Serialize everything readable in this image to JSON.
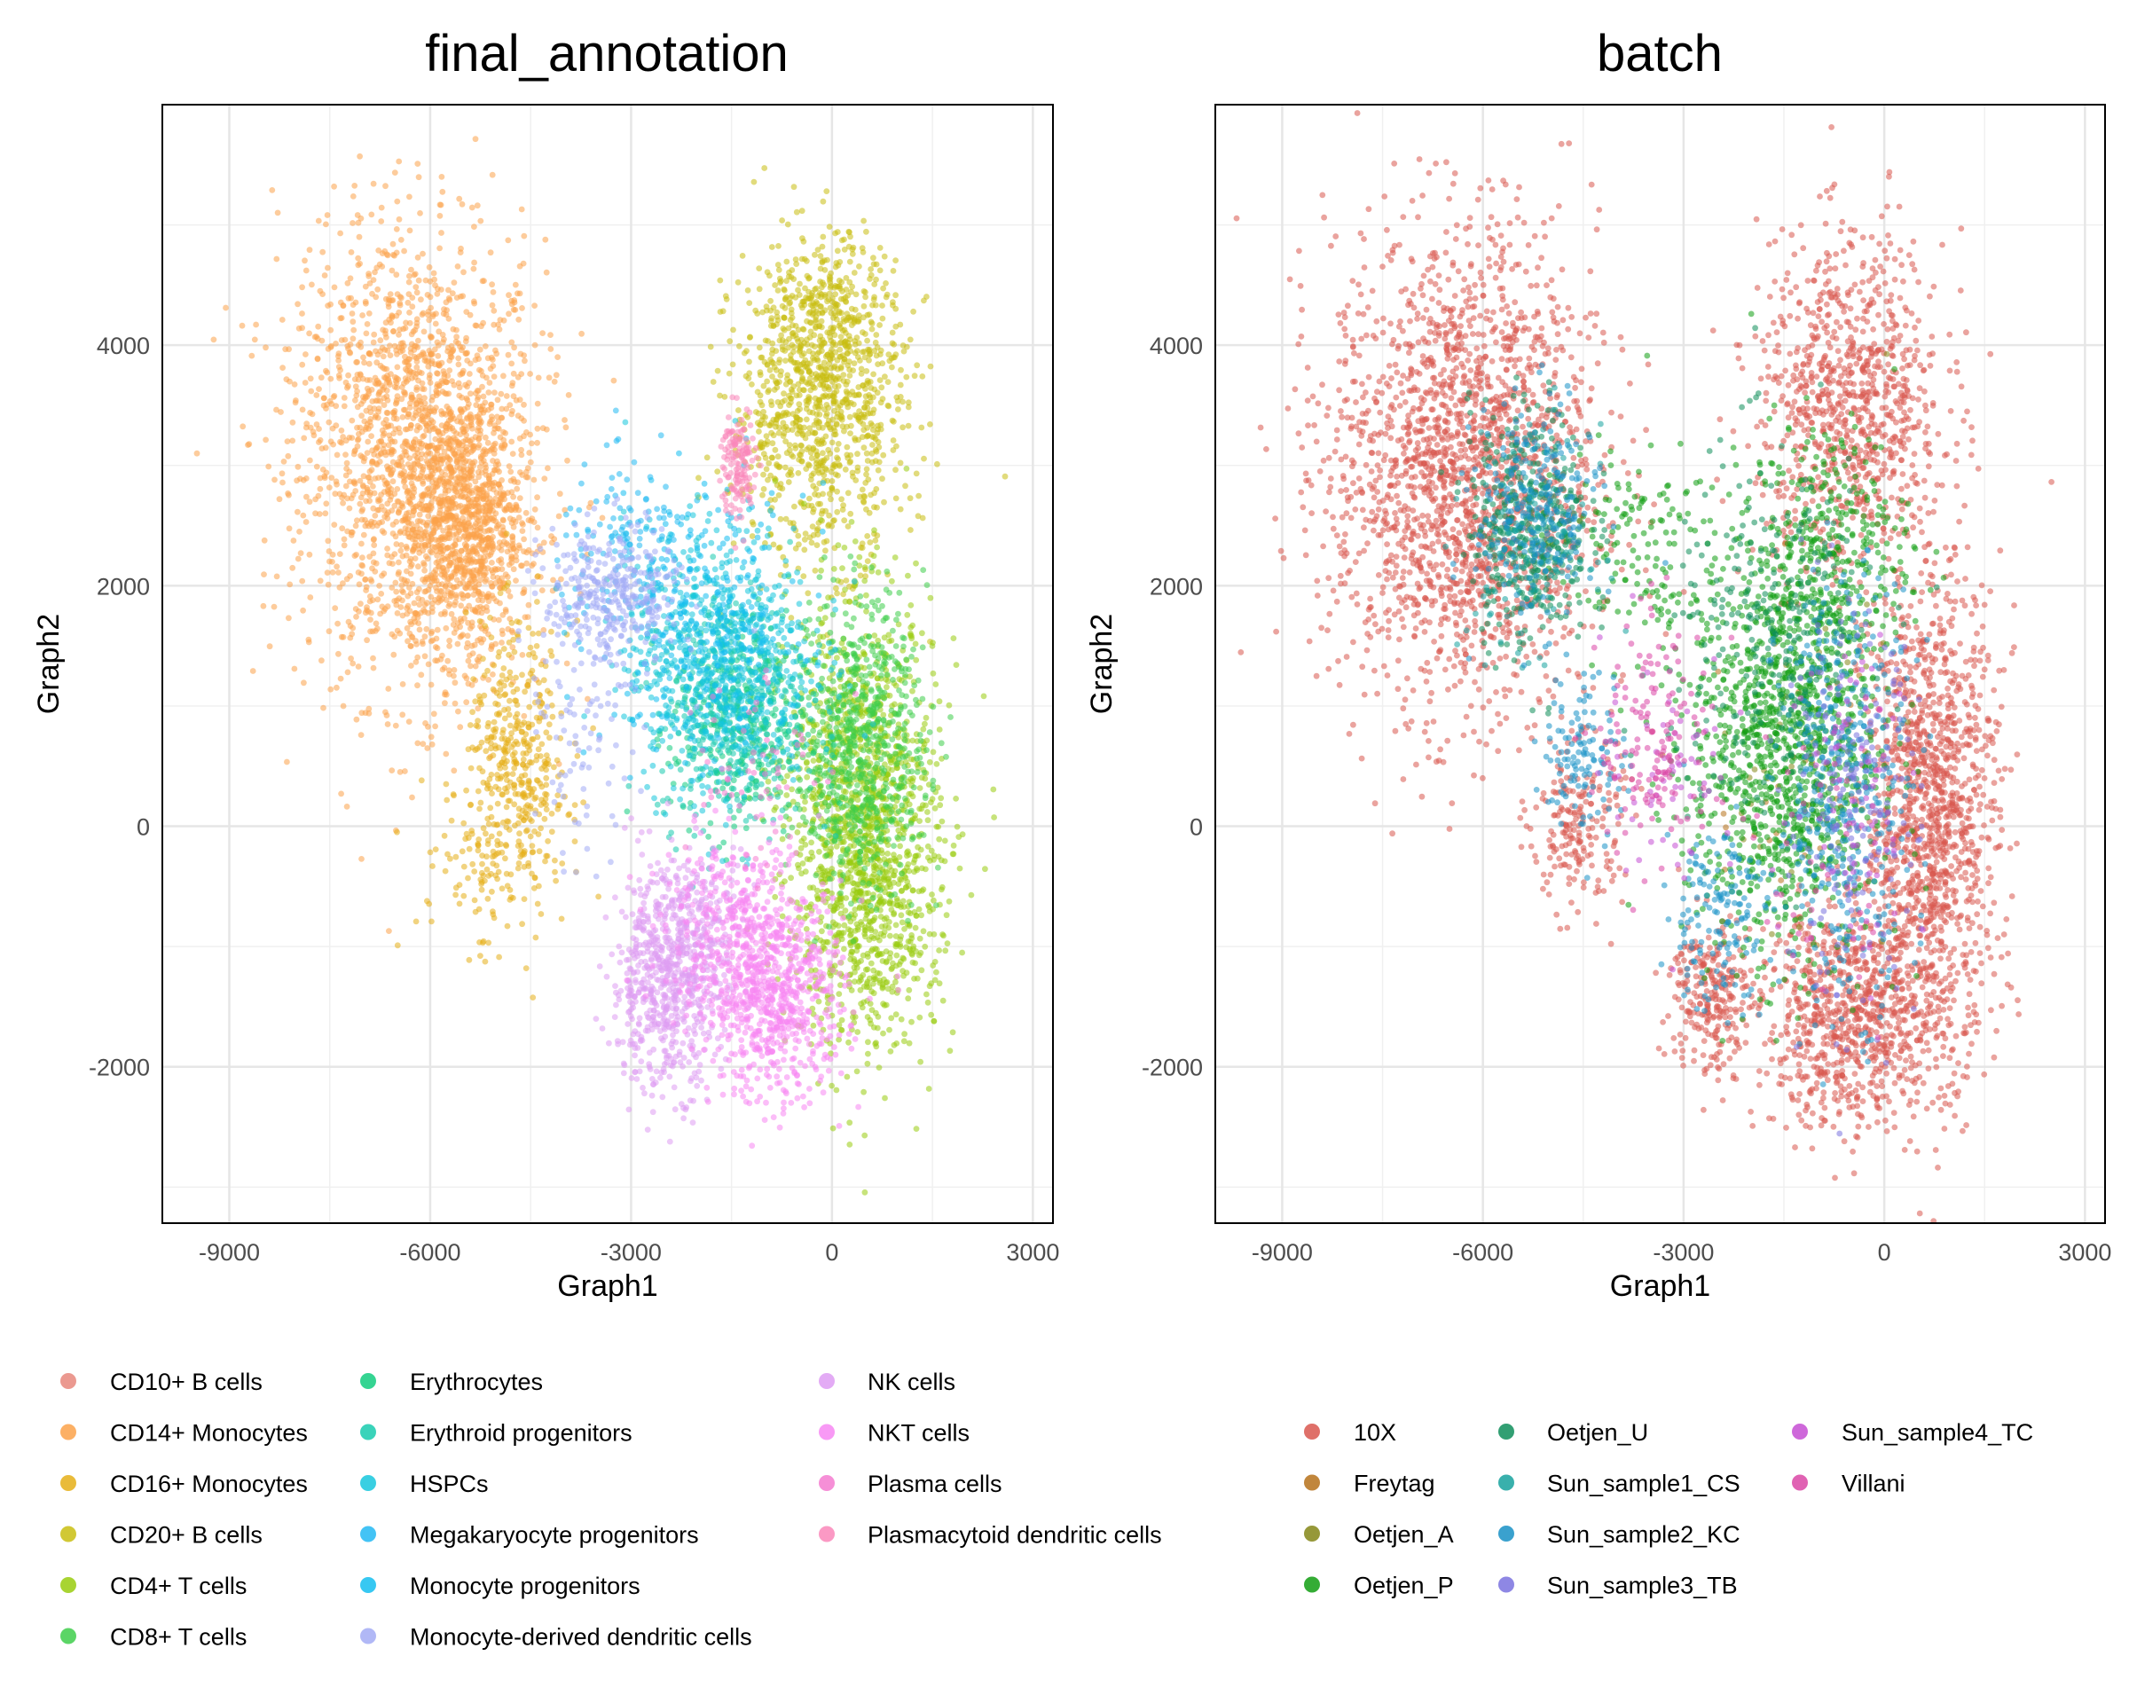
{
  "chart_data": [
    {
      "type": "scatter",
      "title": "final_annotation",
      "xlabel": "Graph1",
      "ylabel": "Graph2",
      "xlim": [
        -10000,
        3300
      ],
      "ylim": [
        -3300,
        6000
      ],
      "xticks": [
        -9000,
        -6000,
        -3000,
        0,
        3000
      ],
      "yticks": [
        -2000,
        0,
        2000,
        4000
      ],
      "grid": true,
      "legend_position": "bottom",
      "series": [
        {
          "name": "CD10+ B cells",
          "color": "#E7877D",
          "clusters": []
        },
        {
          "name": "CD14+ Monocytes",
          "color": "#FBA24A",
          "clusters": [
            {
              "cx": -6100,
              "cy": 2950,
              "sx": 900,
              "sy": 950,
              "n": 1500
            },
            {
              "cx": -5500,
              "cy": 2500,
              "sx": 420,
              "sy": 520,
              "n": 800
            },
            {
              "cx": -6700,
              "cy": 3600,
              "sx": 800,
              "sy": 800,
              "n": 350
            }
          ]
        },
        {
          "name": "CD16+ Monocytes",
          "color": "#E5AF18",
          "clusters": [
            {
              "cx": -4700,
              "cy": 450,
              "sx": 380,
              "sy": 600,
              "n": 450
            },
            {
              "cx": -5400,
              "cy": -300,
              "sx": 450,
              "sy": 350,
              "n": 60
            }
          ]
        },
        {
          "name": "CD20+ B cells",
          "color": "#C9BE10",
          "clusters": [
            {
              "cx": -200,
              "cy": 3500,
              "sx": 650,
              "sy": 650,
              "n": 1000
            },
            {
              "cx": 0,
              "cy": 4200,
              "sx": 450,
              "sy": 350,
              "n": 200
            }
          ]
        },
        {
          "name": "CD4+ T cells",
          "color": "#99CC0E",
          "clusters": [
            {
              "cx": 450,
              "cy": 0,
              "sx": 550,
              "sy": 900,
              "n": 1400
            },
            {
              "cx": 900,
              "cy": -800,
              "sx": 500,
              "sy": 500,
              "n": 150
            }
          ]
        },
        {
          "name": "CD8+ T cells",
          "color": "#3ECE4B",
          "clusters": [
            {
              "cx": 400,
              "cy": 700,
              "sx": 500,
              "sy": 600,
              "n": 700
            }
          ]
        },
        {
          "name": "Erythrocytes",
          "color": "#12CC7F",
          "clusters": [
            {
              "cx": -1400,
              "cy": 800,
              "sx": 500,
              "sy": 450,
              "n": 300
            }
          ]
        },
        {
          "name": "Erythroid progenitors",
          "color": "#17CBAE",
          "clusters": [
            {
              "cx": -1500,
              "cy": 1000,
              "sx": 550,
              "sy": 500,
              "n": 400
            }
          ]
        },
        {
          "name": "HSPCs",
          "color": "#16C7DD",
          "clusters": [
            {
              "cx": -1700,
              "cy": 1400,
              "sx": 700,
              "sy": 550,
              "n": 700
            }
          ]
        },
        {
          "name": "Megakaryocyte progenitors",
          "color": "#22B9F3",
          "clusters": [
            {
              "cx": -3000,
              "cy": 2300,
              "sx": 550,
              "sy": 350,
              "n": 120
            }
          ]
        },
        {
          "name": "Monocyte progenitors",
          "color": "#14BEF0",
          "clusters": [
            {
              "cx": -1900,
              "cy": 1700,
              "sx": 750,
              "sy": 550,
              "n": 300
            }
          ]
        },
        {
          "name": "Monocyte-derived dendritic cells",
          "color": "#A3ACF5",
          "clusters": [
            {
              "cx": -3300,
              "cy": 1900,
              "sx": 500,
              "sy": 300,
              "n": 350
            },
            {
              "cx": -3700,
              "cy": 600,
              "sx": 350,
              "sy": 450,
              "n": 80
            }
          ]
        },
        {
          "name": "NK cells",
          "color": "#DE9CF3",
          "clusters": [
            {
              "cx": -2500,
              "cy": -1300,
              "sx": 400,
              "sy": 450,
              "n": 600
            },
            {
              "cx": -2000,
              "cy": -800,
              "sx": 400,
              "sy": 350,
              "n": 200
            }
          ]
        },
        {
          "name": "NKT cells",
          "color": "#F787F3",
          "clusters": [
            {
              "cx": -800,
              "cy": -1400,
              "sx": 500,
              "sy": 450,
              "n": 700
            },
            {
              "cx": -1500,
              "cy": -900,
              "sx": 500,
              "sy": 400,
              "n": 300
            }
          ]
        },
        {
          "name": "Plasma cells",
          "color": "#F57BD0",
          "clusters": [
            {
              "cx": -1300,
              "cy": 500,
              "sx": 500,
              "sy": 500,
              "n": 60
            }
          ]
        },
        {
          "name": "Plasmacytoid dendritic cells",
          "color": "#FA87BA",
          "clusters": [
            {
              "cx": -1400,
              "cy": 3000,
              "sx": 130,
              "sy": 250,
              "n": 140
            }
          ]
        }
      ]
    },
    {
      "type": "scatter",
      "title": "batch",
      "xlabel": "Graph1",
      "ylabel": "Graph2",
      "xlim": [
        -10000,
        3300
      ],
      "ylim": [
        -3300,
        6000
      ],
      "xticks": [
        -9000,
        -6000,
        -3000,
        0,
        3000
      ],
      "yticks": [
        -2000,
        0,
        2000,
        4000
      ],
      "grid": true,
      "legend_position": "bottom",
      "series": [
        {
          "name": "10X",
          "color": "#D9574F",
          "clusters": [
            {
              "cx": -6300,
              "cy": 2950,
              "sx": 1000,
              "sy": 1000,
              "n": 2000
            },
            {
              "cx": -500,
              "cy": 3500,
              "sx": 700,
              "sy": 700,
              "n": 900
            },
            {
              "cx": 700,
              "cy": 100,
              "sx": 500,
              "sy": 1000,
              "n": 1300
            },
            {
              "cx": -500,
              "cy": -1600,
              "sx": 700,
              "sy": 450,
              "n": 800
            },
            {
              "cx": -2600,
              "cy": -1400,
              "sx": 300,
              "sy": 350,
              "n": 250
            },
            {
              "cx": -4600,
              "cy": 0,
              "sx": 350,
              "sy": 350,
              "n": 200
            }
          ]
        },
        {
          "name": "Freytag",
          "color": "#B6711A",
          "clusters": [
            {
              "cx": -1200,
              "cy": 300,
              "sx": 700,
              "sy": 800,
              "n": 30
            }
          ]
        },
        {
          "name": "Oetjen_A",
          "color": "#848616",
          "clusters": [
            {
              "cx": -1300,
              "cy": 500,
              "sx": 700,
              "sy": 800,
              "n": 40
            }
          ]
        },
        {
          "name": "Oetjen_P",
          "color": "#119E12",
          "clusters": [
            {
              "cx": -1500,
              "cy": 700,
              "sx": 700,
              "sy": 900,
              "n": 1200
            },
            {
              "cx": -800,
              "cy": 2300,
              "sx": 600,
              "sy": 550,
              "n": 300
            },
            {
              "cx": -3800,
              "cy": 2300,
              "sx": 700,
              "sy": 450,
              "n": 150
            }
          ]
        },
        {
          "name": "Oetjen_U",
          "color": "#0E8E5A",
          "clusters": [
            {
              "cx": -5300,
              "cy": 2500,
              "sx": 450,
              "sy": 500,
              "n": 400
            },
            {
              "cx": -1600,
              "cy": 1500,
              "sx": 800,
              "sy": 800,
              "n": 300
            }
          ]
        },
        {
          "name": "Sun_sample1_CS",
          "color": "#16A29E",
          "clusters": [
            {
              "cx": -5300,
              "cy": 2400,
              "sx": 450,
              "sy": 450,
              "n": 150
            }
          ]
        },
        {
          "name": "Sun_sample2_KC",
          "color": "#1891C6",
          "clusters": [
            {
              "cx": -5200,
              "cy": 2600,
              "sx": 450,
              "sy": 450,
              "n": 250
            },
            {
              "cx": -600,
              "cy": 300,
              "sx": 500,
              "sy": 900,
              "n": 400
            },
            {
              "cx": -4500,
              "cy": 600,
              "sx": 300,
              "sy": 350,
              "n": 120
            },
            {
              "cx": -2500,
              "cy": -700,
              "sx": 400,
              "sy": 400,
              "n": 150
            }
          ]
        },
        {
          "name": "Sun_sample3_TB",
          "color": "#7A72DF",
          "clusters": [
            {
              "cx": -500,
              "cy": 100,
              "sx": 500,
              "sy": 800,
              "n": 200
            }
          ]
        },
        {
          "name": "Sun_sample4_TC",
          "color": "#C54ED3",
          "clusters": [
            {
              "cx": -400,
              "cy": 400,
              "sx": 500,
              "sy": 700,
              "n": 80
            },
            {
              "cx": -3200,
              "cy": 500,
              "sx": 500,
              "sy": 500,
              "n": 60
            }
          ]
        },
        {
          "name": "Villani",
          "color": "#DB46A6",
          "clusters": [
            {
              "cx": -3400,
              "cy": 700,
              "sx": 450,
              "sy": 500,
              "n": 150
            },
            {
              "cx": -1000,
              "cy": -300,
              "sx": 500,
              "sy": 600,
              "n": 40
            }
          ]
        }
      ]
    }
  ]
}
